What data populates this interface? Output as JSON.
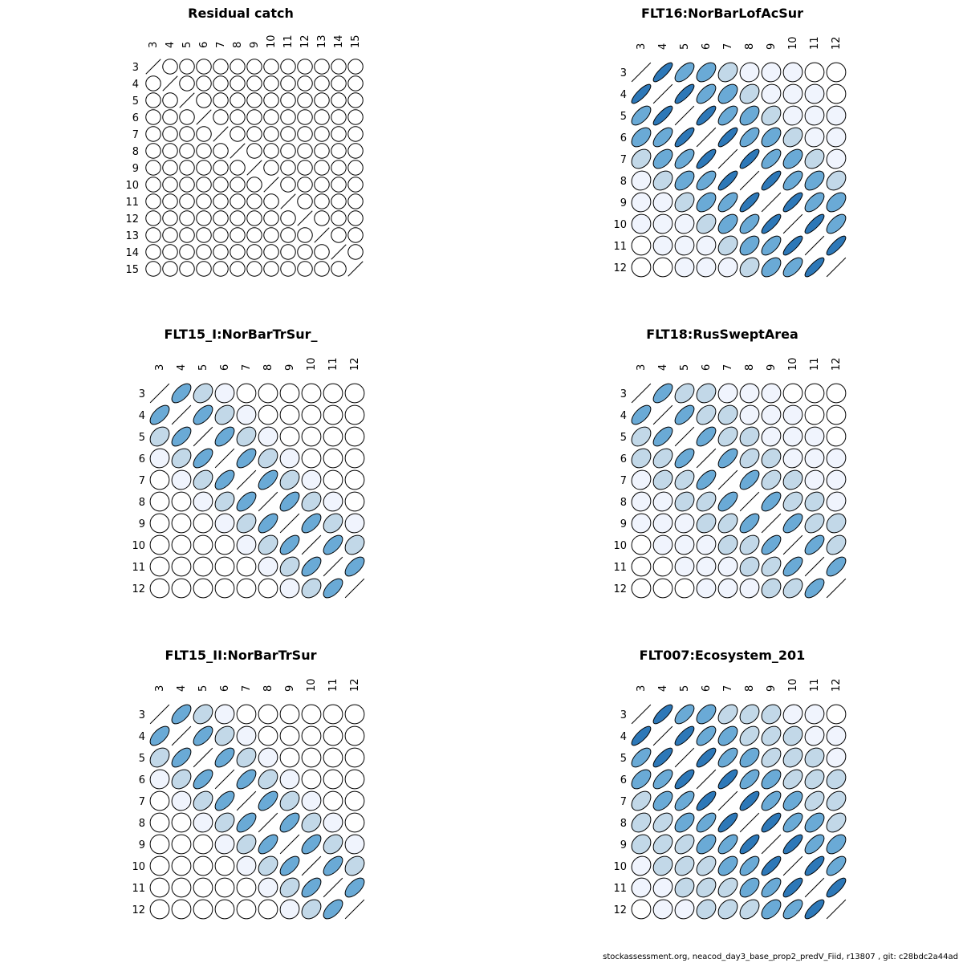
{
  "footer": "stockassessment.org, neacod_day3_base_prop2_predV_Fiid, r13807 , git: c28bdc2a44ad",
  "colors": {
    "vlow": "#f0f4fd",
    "low": "#c2d8e8",
    "mid": "#6aaad6",
    "high": "#2d78b8",
    "outline": "#000000"
  },
  "chart_data": [
    {
      "type": "heatmap",
      "title": "Residual catch",
      "ages": [
        "3",
        "4",
        "5",
        "6",
        "7",
        "8",
        "9",
        "10",
        "11",
        "12",
        "13",
        "14",
        "15"
      ],
      "bands": [
        0,
        0,
        0,
        0,
        0,
        0,
        0,
        0,
        0,
        0,
        0,
        0
      ]
    },
    {
      "type": "heatmap",
      "title": "FLT16:NorBarLofAcSur",
      "ages": [
        "3",
        "4",
        "5",
        "6",
        "7",
        "8",
        "9",
        "10",
        "11",
        "12"
      ],
      "bands": [
        0.82,
        0.62,
        0.48,
        0.3,
        0.08,
        0.05,
        0.03,
        0,
        0
      ]
    },
    {
      "type": "heatmap",
      "title": "FLT15_I:NorBarTrSur_",
      "ages": [
        "3",
        "4",
        "5",
        "6",
        "7",
        "8",
        "9",
        "10",
        "11",
        "12"
      ],
      "bands": [
        0.6,
        0.3,
        0.05,
        0,
        0,
        0,
        0,
        0,
        0
      ]
    },
    {
      "type": "heatmap",
      "title": "FLT18:RusSweptArea",
      "ages": [
        "3",
        "4",
        "5",
        "6",
        "7",
        "8",
        "9",
        "10",
        "11",
        "12"
      ],
      "bands": [
        0.62,
        0.36,
        0.22,
        0.1,
        0.06,
        0.04,
        0.02,
        0,
        0
      ]
    },
    {
      "type": "heatmap",
      "title": "FLT15_II:NorBarTrSur",
      "ages": [
        "3",
        "4",
        "5",
        "6",
        "7",
        "8",
        "9",
        "10",
        "11",
        "12"
      ],
      "bands": [
        0.6,
        0.3,
        0.05,
        0,
        0,
        0,
        0,
        0,
        0
      ]
    },
    {
      "type": "heatmap",
      "title": "FLT007:Ecosystem_201",
      "ages": [
        "3",
        "4",
        "5",
        "6",
        "7",
        "8",
        "9",
        "10",
        "11",
        "12"
      ],
      "bands": [
        0.78,
        0.62,
        0.5,
        0.4,
        0.3,
        0.2,
        0.12,
        0.06,
        0
      ]
    }
  ]
}
